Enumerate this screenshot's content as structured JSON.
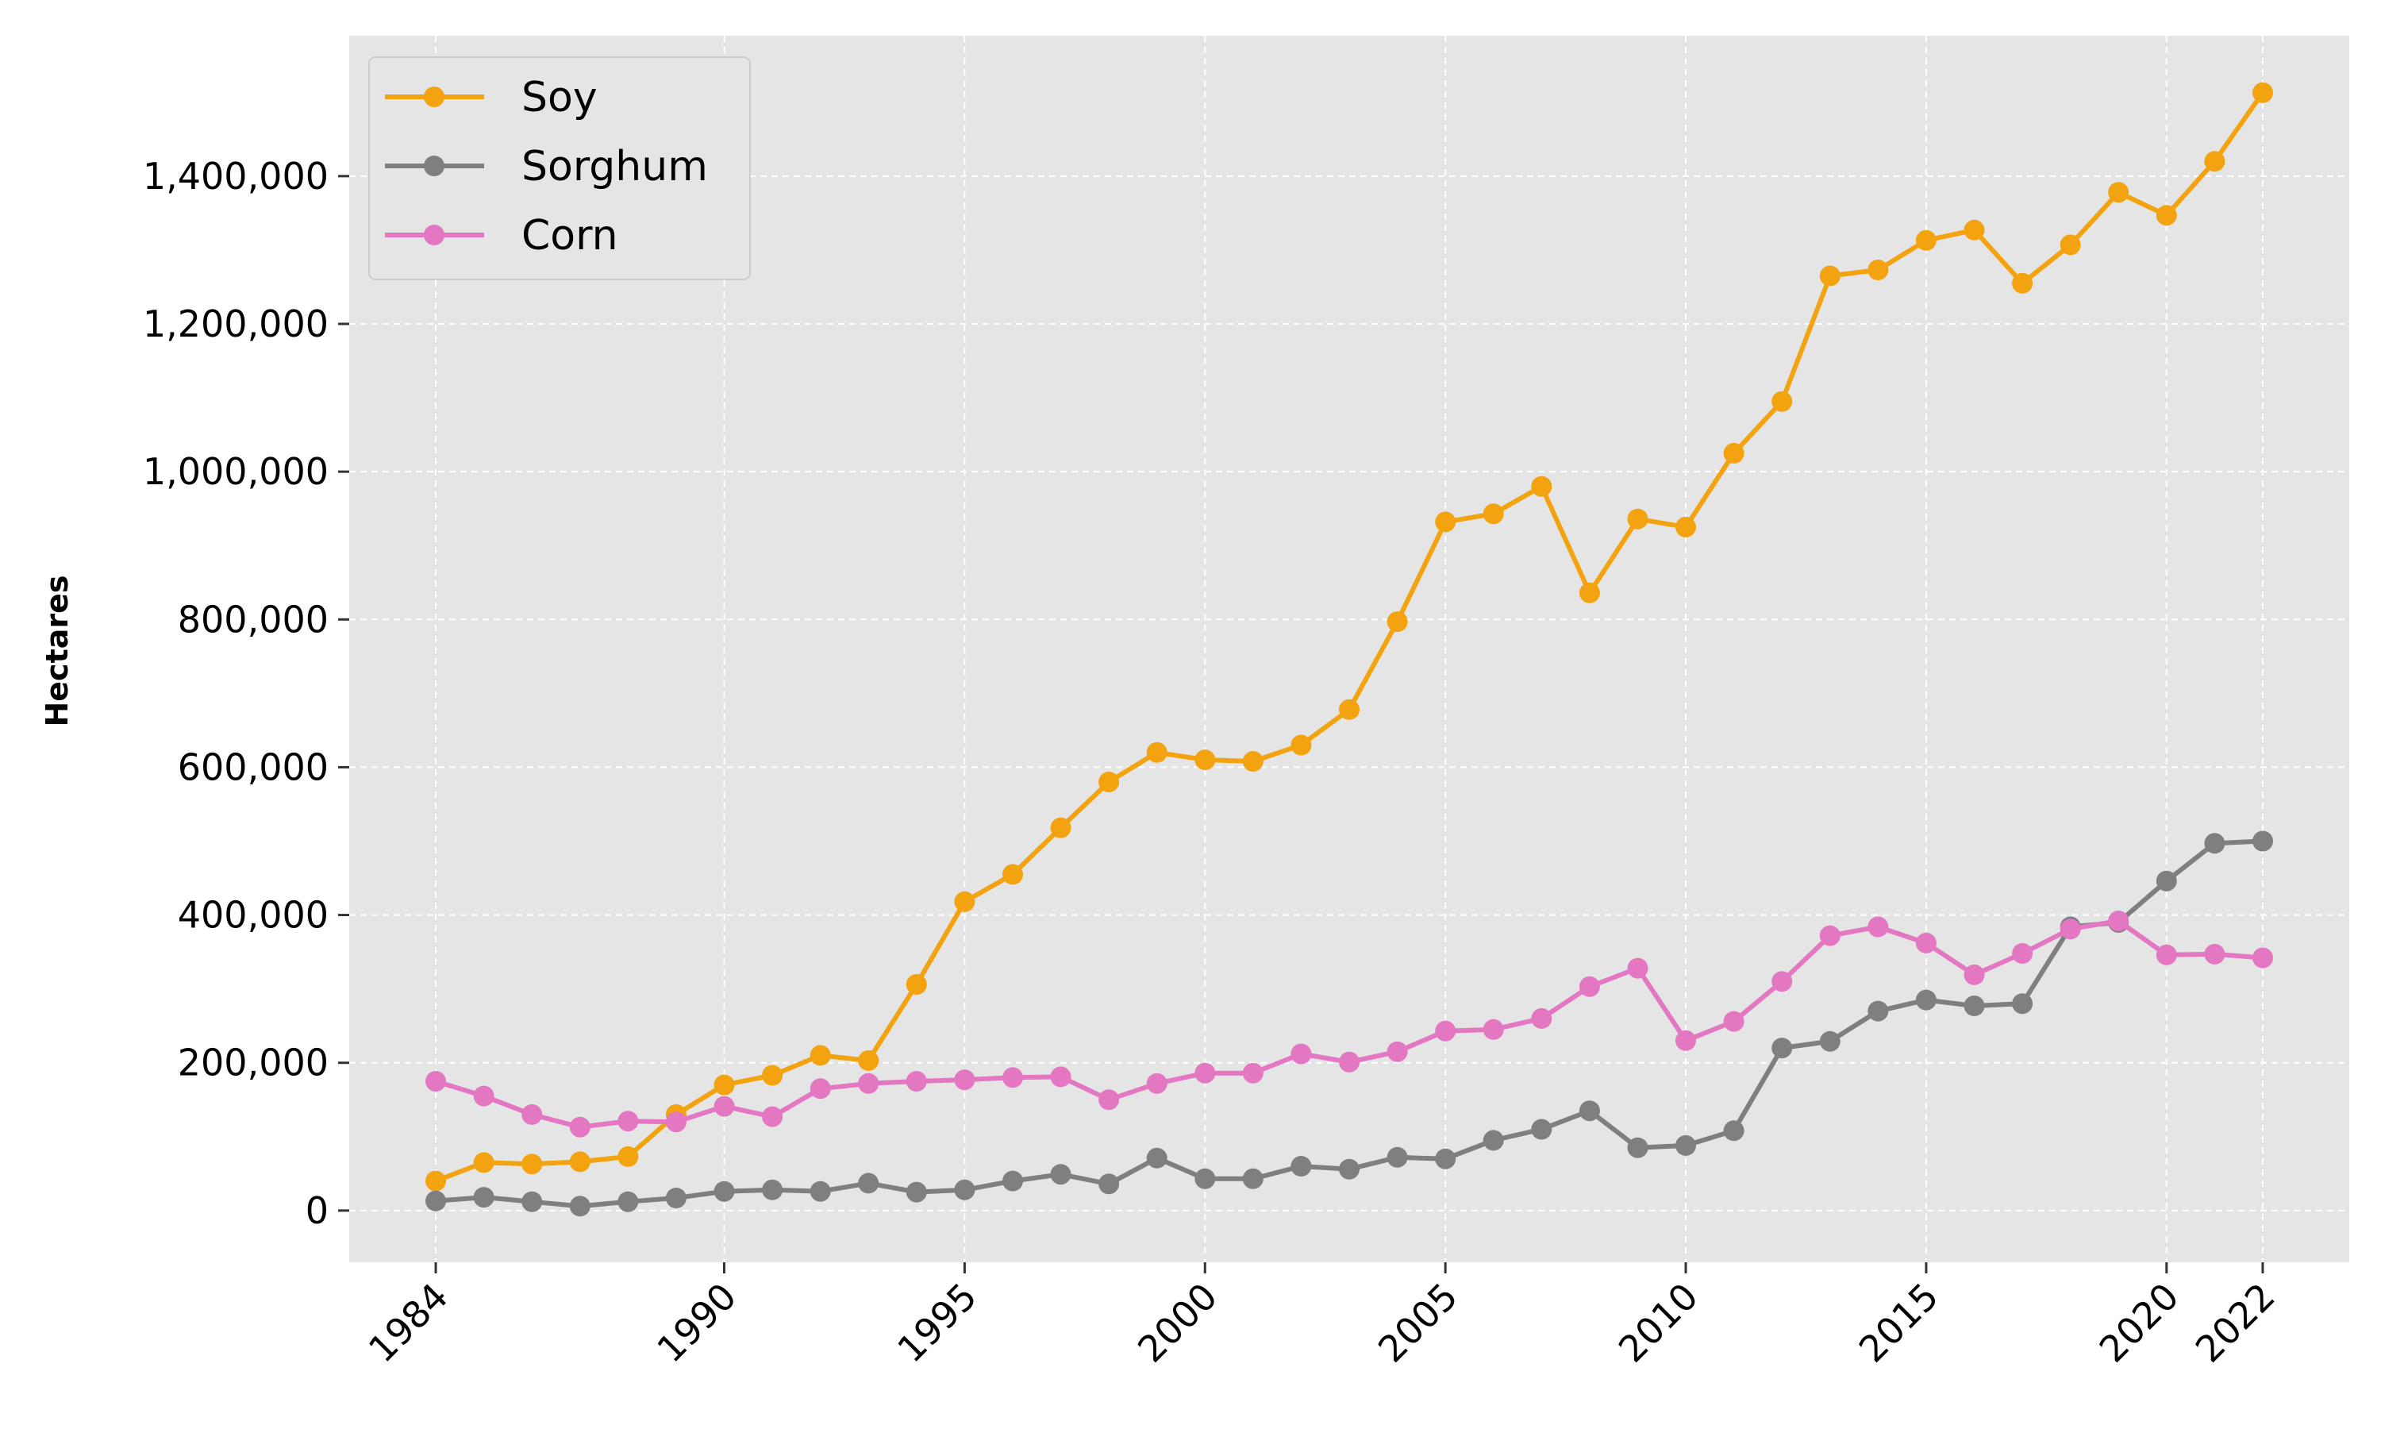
{
  "chart_data": {
    "type": "line",
    "title": "",
    "xlabel": "",
    "ylabel": "Hectares",
    "x": [
      1984,
      1985,
      1986,
      1987,
      1988,
      1989,
      1990,
      1991,
      1992,
      1993,
      1994,
      1995,
      1996,
      1997,
      1998,
      1999,
      2000,
      2001,
      2002,
      2003,
      2004,
      2005,
      2006,
      2007,
      2008,
      2009,
      2010,
      2011,
      2012,
      2013,
      2014,
      2015,
      2016,
      2017,
      2018,
      2019,
      2020,
      2021,
      2022
    ],
    "xticks": [
      1984,
      1990,
      1995,
      2000,
      2005,
      2010,
      2015,
      2020,
      2022
    ],
    "xlim": [
      1982.2,
      2023.8
    ],
    "yticks": [
      0,
      200000,
      400000,
      600000,
      800000,
      1000000,
      1200000,
      1400000
    ],
    "ytick_labels": [
      "0",
      "200,000",
      "400,000",
      "600,000",
      "800,000",
      "1,000,000",
      "1,200,000",
      "1,400,000"
    ],
    "ylim": [
      -70000,
      1590000
    ],
    "grid": true,
    "legend_position": "top-left",
    "series": [
      {
        "name": "Soy",
        "color": "#f2a30f",
        "values": [
          40000,
          65000,
          63000,
          66000,
          73000,
          130000,
          170000,
          183000,
          210000,
          203000,
          306000,
          418000,
          455000,
          518000,
          580000,
          620000,
          610000,
          608000,
          630000,
          678000,
          797000,
          932000,
          943000,
          980000,
          836000,
          936000,
          925000,
          1025000,
          1095000,
          1265000,
          1273000,
          1313000,
          1327000,
          1255000,
          1307000,
          1378000,
          1347000,
          1420000,
          1513000
        ]
      },
      {
        "name": "Sorghum",
        "color": "#7f7f7f",
        "values": [
          13000,
          18000,
          12000,
          6000,
          12000,
          17000,
          26000,
          28000,
          26000,
          37000,
          25000,
          28000,
          40000,
          49000,
          36000,
          71000,
          43000,
          43000,
          60000,
          56000,
          72000,
          70000,
          95000,
          110000,
          135000,
          85000,
          88000,
          108000,
          220000,
          229000,
          270000,
          285000,
          277000,
          280000,
          384000,
          390000,
          446000,
          497000,
          500000
        ]
      },
      {
        "name": "Corn",
        "color": "#e377c2",
        "values": [
          175000,
          155000,
          130000,
          113000,
          121000,
          120000,
          141000,
          127000,
          165000,
          172000,
          175000,
          177000,
          180000,
          181000,
          150000,
          172000,
          186000,
          186000,
          212000,
          201000,
          215000,
          243000,
          245000,
          260000,
          303000,
          328000,
          230000,
          256000,
          310000,
          372000,
          384000,
          362000,
          319000,
          348000,
          381000,
          392000,
          346000,
          347000,
          342000
        ]
      }
    ]
  }
}
